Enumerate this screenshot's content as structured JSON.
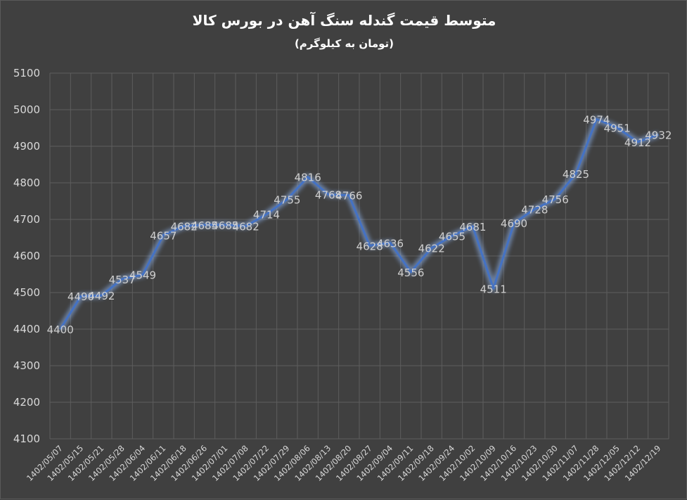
{
  "chart_data": {
    "type": "line",
    "title": "متوسط قیمت گندله سنگ آهن در بورس کالا",
    "subtitle": "(تومان به کیلوگرم)",
    "categories": [
      "1402/05/07",
      "1402/05/15",
      "1402/05/21",
      "1402/05/28",
      "1402/06/04",
      "1402/06/11",
      "1402/06/18",
      "1402/06/26",
      "1402/07/01",
      "1402/07/08",
      "1402/07/22",
      "1402/07/29",
      "1402/08/06",
      "1402/08/13",
      "1402/08/20",
      "1402/08/27",
      "1402/09/04",
      "1402/09/11",
      "1402/09/18",
      "1402/09/24",
      "1402/10/02",
      "1402/10/09",
      "1402/10/16",
      "1402/10/23",
      "1402/10/30",
      "1402/11/07",
      "1402/11/28",
      "1402/12/05",
      "1402/12/12",
      "1402/12/19"
    ],
    "series": [
      {
        "values": [
          4400,
          4490,
          4492,
          4537,
          4549,
          4657,
          4682,
          4685,
          4685,
          4682,
          4714,
          4755,
          4816,
          4768,
          4766,
          4628,
          4636,
          4556,
          4622,
          4655,
          4681,
          4511,
          4690,
          4728,
          4756,
          4825,
          4974,
          4951,
          4912,
          4932
        ]
      }
    ],
    "yticks": [
      "4100",
      "4200",
      "4300",
      "4400",
      "4500",
      "4600",
      "4700",
      "4800",
      "4900",
      "5000",
      "5100"
    ],
    "ylim": [
      4100,
      5100
    ],
    "grid": true,
    "line_color": "#4472c4",
    "glow_color": "#8eb4f0",
    "background_color": "#404040"
  }
}
